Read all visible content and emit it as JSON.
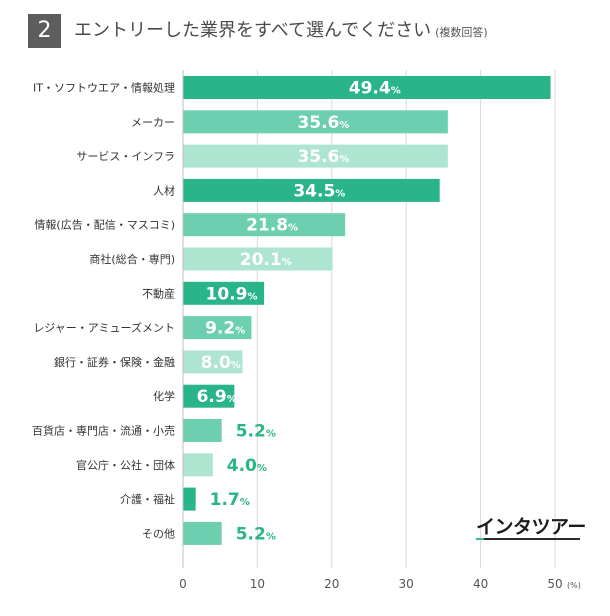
{
  "header": {
    "number": "2",
    "title": "エントリーした業界をすべて選んでください",
    "subtitle": "(複数回答)"
  },
  "logo": {
    "text": "インタツアー"
  },
  "colors": {
    "dark": "#29b48a",
    "medium": "#6ccfb0",
    "light": "#ade5d1",
    "grid": "#d9d9d9",
    "axis_text": "#555555",
    "label_text": "#333333"
  },
  "chart_data": {
    "type": "bar",
    "orientation": "horizontal",
    "title": "エントリーした業界をすべて選んでください",
    "categories": [
      "IT・ソフトウエア・情報処理",
      "メーカー",
      "サービス・インフラ",
      "人材",
      "情報(広告・配信・マスコミ)",
      "商社(総合・専門)",
      "不動産",
      "レジャー・アミューズメント",
      "銀行・証券・保険・金融",
      "化学",
      "百貨店・専門店・流通・小売",
      "官公庁・公社・団体",
      "介護・福祉",
      "その他"
    ],
    "values": [
      49.4,
      35.6,
      35.6,
      34.5,
      21.8,
      20.1,
      10.9,
      9.2,
      8.0,
      6.9,
      5.2,
      4.0,
      1.7,
      5.2
    ],
    "value_labels": [
      "49.4",
      "35.6",
      "35.6",
      "34.5",
      "21.8",
      "20.1",
      "10.9",
      "9.2",
      "8.0",
      "6.9",
      "5.2",
      "4.0",
      "1.7",
      "5.2"
    ],
    "shades": [
      "dark",
      "medium",
      "light",
      "dark",
      "medium",
      "light",
      "dark",
      "medium",
      "light",
      "dark",
      "medium",
      "light",
      "dark",
      "medium"
    ],
    "value_unit": "%",
    "xlabel": "",
    "xunit": "(%)",
    "xlim": [
      0,
      50
    ],
    "xticks": [
      0,
      10,
      20,
      30,
      40,
      50
    ],
    "grid": true
  }
}
